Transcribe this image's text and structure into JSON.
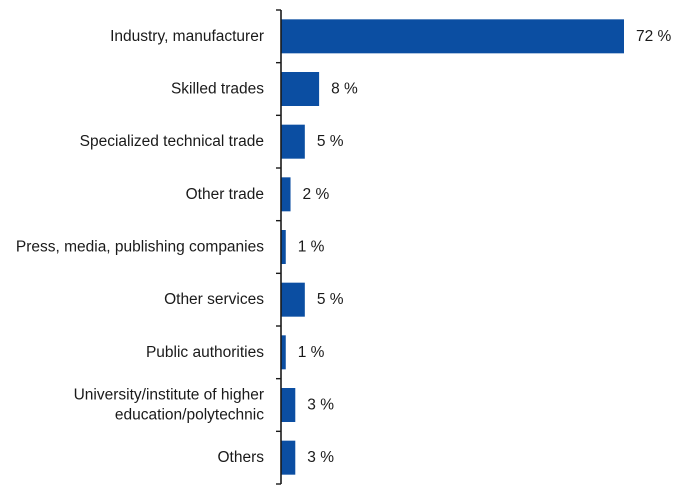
{
  "chart_data": {
    "type": "bar",
    "orientation": "horizontal",
    "title": "",
    "xlabel": "",
    "ylabel": "",
    "categories": [
      [
        "Industry, manufacturer"
      ],
      [
        "Skilled trades"
      ],
      [
        "Specialized technical trade"
      ],
      [
        "Other trade"
      ],
      [
        "Press, media, publishing companies"
      ],
      [
        "Other services"
      ],
      [
        "Public authorities"
      ],
      [
        "University/institute of higher",
        "education/polytechnic"
      ],
      [
        "Others"
      ]
    ],
    "values": [
      72,
      8,
      5,
      2,
      1,
      5,
      1,
      3,
      3
    ],
    "value_labels": [
      "72 %",
      "8 %",
      "5 %",
      "2 %",
      "1 %",
      "5 %",
      "1 %",
      "3 %",
      "3 %"
    ],
    "unit": "%",
    "xlim": [
      0,
      72
    ],
    "grid": false,
    "legend": "none",
    "bar_color": "#0b4ea2",
    "axis_color": "#1a1a1a",
    "text_color": "#1a1a1a"
  }
}
